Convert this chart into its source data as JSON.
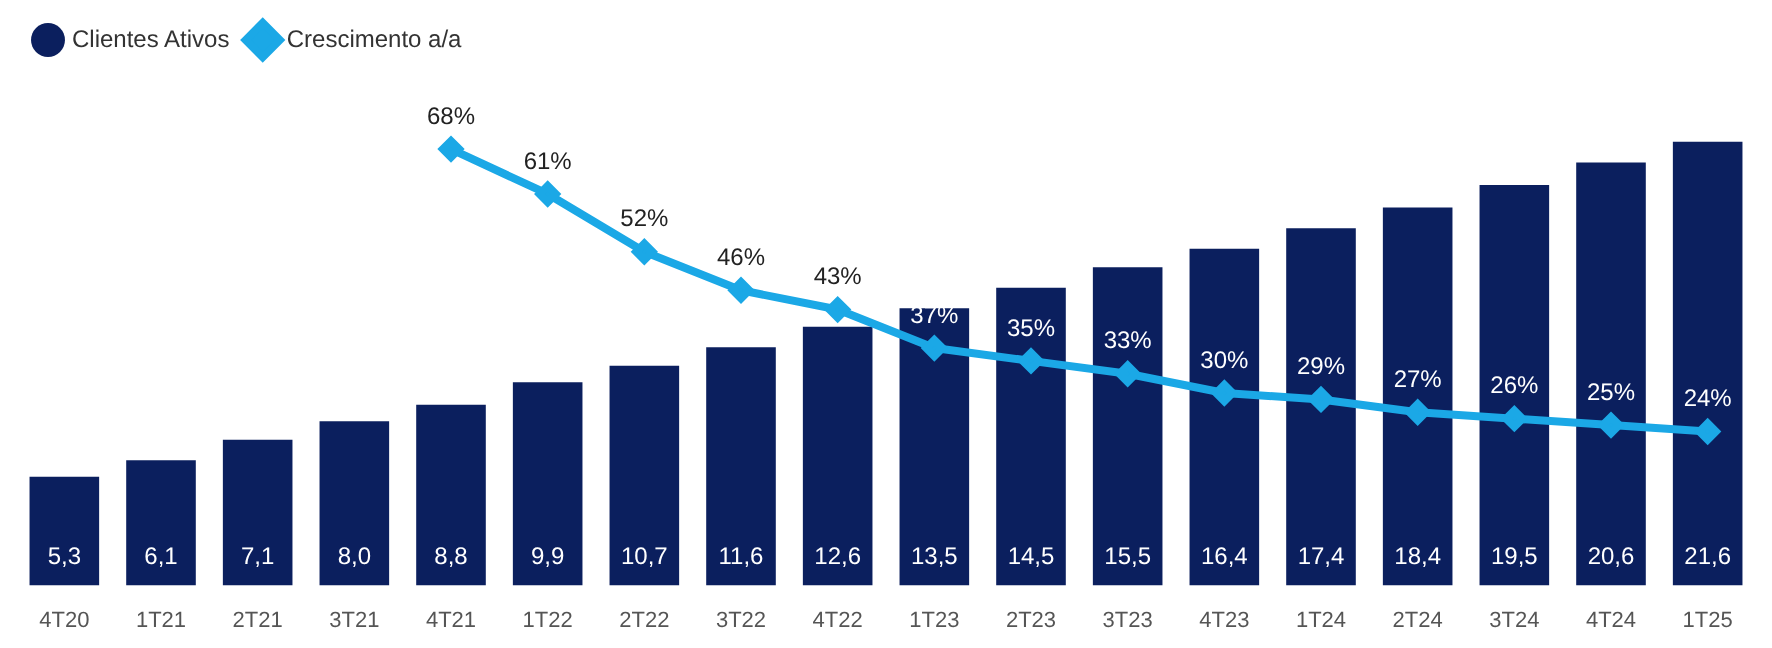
{
  "chart_data": {
    "type": "bar",
    "categories": [
      "4T20",
      "1T21",
      "2T21",
      "3T21",
      "4T21",
      "1T22",
      "2T22",
      "3T22",
      "4T22",
      "1T23",
      "2T23",
      "3T23",
      "4T23",
      "1T24",
      "2T24",
      "3T24",
      "4T24",
      "1T25"
    ],
    "series": [
      {
        "name": "Clientes Ativos",
        "type": "bar",
        "color": "#0b1f5e",
        "values": [
          5.3,
          6.1,
          7.1,
          8.0,
          8.8,
          9.9,
          10.7,
          11.6,
          12.6,
          13.5,
          14.5,
          15.5,
          16.4,
          17.4,
          18.4,
          19.5,
          20.6,
          21.6
        ],
        "value_labels": [
          "5,3",
          "6,1",
          "7,1",
          "8,0",
          "8,8",
          "9,9",
          "10,7",
          "11,6",
          "12,6",
          "13,5",
          "14,5",
          "15,5",
          "16,4",
          "17,4",
          "18,4",
          "19,5",
          "20,6",
          "21,6"
        ]
      },
      {
        "name": "Crescimento a/a",
        "type": "line",
        "axis": "y2",
        "color": "#1ba8e6",
        "marker": "diamond",
        "values": [
          null,
          null,
          null,
          null,
          68,
          61,
          52,
          46,
          43,
          37,
          35,
          33,
          30,
          29,
          27,
          26,
          25,
          24
        ],
        "value_labels": [
          null,
          null,
          null,
          null,
          "68%",
          "61%",
          "52%",
          "46%",
          "43%",
          "37%",
          "35%",
          "33%",
          "30%",
          "29%",
          "27%",
          "26%",
          "25%",
          "24%"
        ]
      }
    ],
    "legend": "top left",
    "grid": false
  }
}
